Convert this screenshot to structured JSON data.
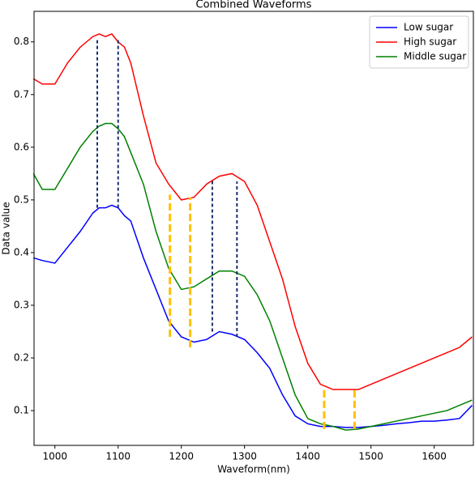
{
  "chart_data": {
    "type": "line",
    "title": "Combined Waveforms",
    "x_label": "Waveform(nm)",
    "y_label": "Data value",
    "x": [
      966,
      980,
      1000,
      1020,
      1040,
      1060,
      1070,
      1080,
      1090,
      1100,
      1110,
      1120,
      1140,
      1160,
      1180,
      1200,
      1220,
      1240,
      1260,
      1280,
      1300,
      1320,
      1340,
      1360,
      1380,
      1400,
      1420,
      1440,
      1460,
      1480,
      1500,
      1520,
      1540,
      1560,
      1580,
      1600,
      1620,
      1640,
      1660
    ],
    "series": [
      {
        "name": "Low sugar",
        "color": "#0000ff",
        "values": [
          0.39,
          0.385,
          0.38,
          0.41,
          0.44,
          0.475,
          0.485,
          0.485,
          0.49,
          0.485,
          0.47,
          0.46,
          0.39,
          0.33,
          0.27,
          0.24,
          0.23,
          0.235,
          0.25,
          0.245,
          0.235,
          0.21,
          0.18,
          0.13,
          0.09,
          0.075,
          0.07,
          0.07,
          0.068,
          0.068,
          0.07,
          0.072,
          0.075,
          0.077,
          0.08,
          0.08,
          0.082,
          0.085,
          0.11
        ]
      },
      {
        "name": "High sugar",
        "color": "#ff0000",
        "values": [
          0.73,
          0.72,
          0.72,
          0.76,
          0.79,
          0.81,
          0.815,
          0.81,
          0.815,
          0.8,
          0.79,
          0.76,
          0.66,
          0.57,
          0.53,
          0.5,
          0.505,
          0.53,
          0.545,
          0.55,
          0.535,
          0.49,
          0.42,
          0.35,
          0.26,
          0.19,
          0.15,
          0.14,
          0.14,
          0.14,
          0.15,
          0.16,
          0.17,
          0.18,
          0.19,
          0.2,
          0.21,
          0.22,
          0.24
        ]
      },
      {
        "name": "Middle sugar",
        "color": "#008000",
        "values": [
          0.55,
          0.52,
          0.52,
          0.56,
          0.6,
          0.63,
          0.64,
          0.645,
          0.645,
          0.635,
          0.62,
          0.59,
          0.53,
          0.44,
          0.37,
          0.33,
          0.335,
          0.35,
          0.365,
          0.365,
          0.355,
          0.32,
          0.27,
          0.2,
          0.13,
          0.085,
          0.075,
          0.07,
          0.063,
          0.065,
          0.07,
          0.075,
          0.08,
          0.085,
          0.09,
          0.095,
          0.1,
          0.11,
          0.12
        ]
      }
    ],
    "vlines": [
      {
        "x": 1067,
        "y0": 0.485,
        "y1": 0.805,
        "color": "#1a2e6e"
      },
      {
        "x": 1100,
        "y0": 0.485,
        "y1": 0.805,
        "color": "#1a2e6e"
      },
      {
        "x": 1249,
        "y0": 0.25,
        "y1": 0.54,
        "color": "#1a2e6e"
      },
      {
        "x": 1288,
        "y0": 0.24,
        "y1": 0.535,
        "color": "#1a2e6e"
      },
      {
        "x": 1182,
        "y0": 0.24,
        "y1": 0.51,
        "color": "#ffc000"
      },
      {
        "x": 1214,
        "y0": 0.22,
        "y1": 0.505,
        "color": "#ffc000"
      },
      {
        "x": 1426,
        "y0": 0.065,
        "y1": 0.14,
        "color": "#ffc000"
      },
      {
        "x": 1474,
        "y0": 0.065,
        "y1": 0.14,
        "color": "#ffc000"
      }
    ],
    "xlim": [
      967,
      1662
    ],
    "ylim": [
      0.034,
      0.858
    ],
    "xticks": [
      1000,
      1100,
      1200,
      1300,
      1400,
      1500,
      1600
    ],
    "yticks": [
      0.1,
      0.2,
      0.3,
      0.4,
      0.5,
      0.6,
      0.7,
      0.8
    ],
    "legend": "upper right"
  }
}
